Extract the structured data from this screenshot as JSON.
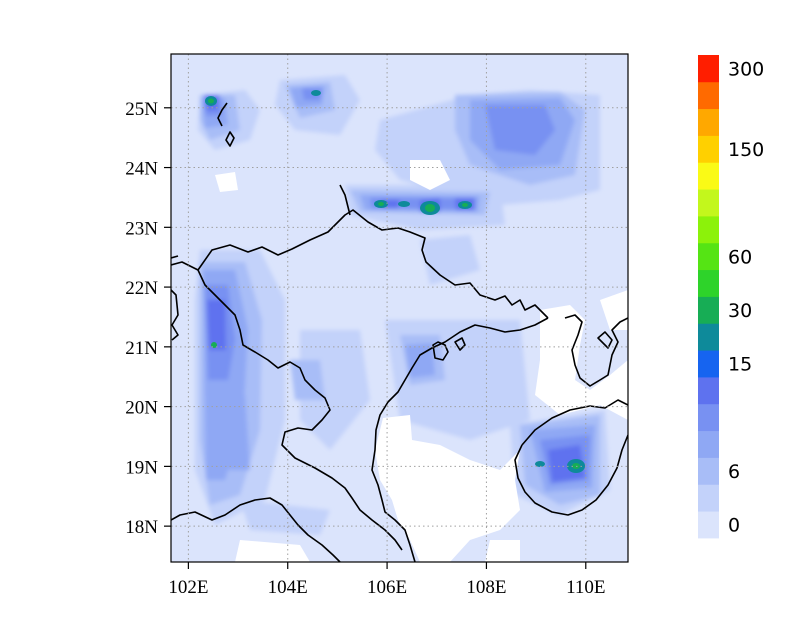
{
  "map": {
    "lon_range": [
      101.65,
      110.85
    ],
    "lat_range": [
      17.4,
      25.9
    ],
    "gridline_style": "dotted",
    "lon_ticks": [
      {
        "value": 102,
        "label": "102E"
      },
      {
        "value": 104,
        "label": "104E"
      },
      {
        "value": 106,
        "label": "106E"
      },
      {
        "value": 108,
        "label": "108E"
      },
      {
        "value": 110,
        "label": "110E"
      }
    ],
    "lat_ticks": [
      {
        "value": 18,
        "label": "18N"
      },
      {
        "value": 19,
        "label": "19N"
      },
      {
        "value": 20,
        "label": "20N"
      },
      {
        "value": 21,
        "label": "21N"
      },
      {
        "value": 22,
        "label": "22N"
      },
      {
        "value": 23,
        "label": "23N"
      },
      {
        "value": 24,
        "label": "24N"
      },
      {
        "value": 25,
        "label": "25N"
      }
    ],
    "background_field_color": "#dbe4fc",
    "no_data_color": "#ffffff",
    "coastline_color": "#000000"
  },
  "colorbar": {
    "colors": [
      "#dbe4fc",
      "#c3d2fa",
      "#a8bdf7",
      "#8fa8f4",
      "#7891f2",
      "#5e72ef",
      "#1664f0",
      "#0e8a9a",
      "#17ad55",
      "#2ed32a",
      "#55e414",
      "#8cf20a",
      "#c3f71c",
      "#fafa16",
      "#ffd000",
      "#ffa800",
      "#ff6a00",
      "#ff1e00"
    ],
    "labels": [
      {
        "index": 0,
        "text": "0"
      },
      {
        "index": 2,
        "text": "6"
      },
      {
        "index": 6,
        "text": "15"
      },
      {
        "index": 8,
        "text": "30"
      },
      {
        "index": 10,
        "text": "60"
      },
      {
        "index": 14,
        "text": "150"
      },
      {
        "index": 17,
        "text": "300"
      }
    ]
  }
}
